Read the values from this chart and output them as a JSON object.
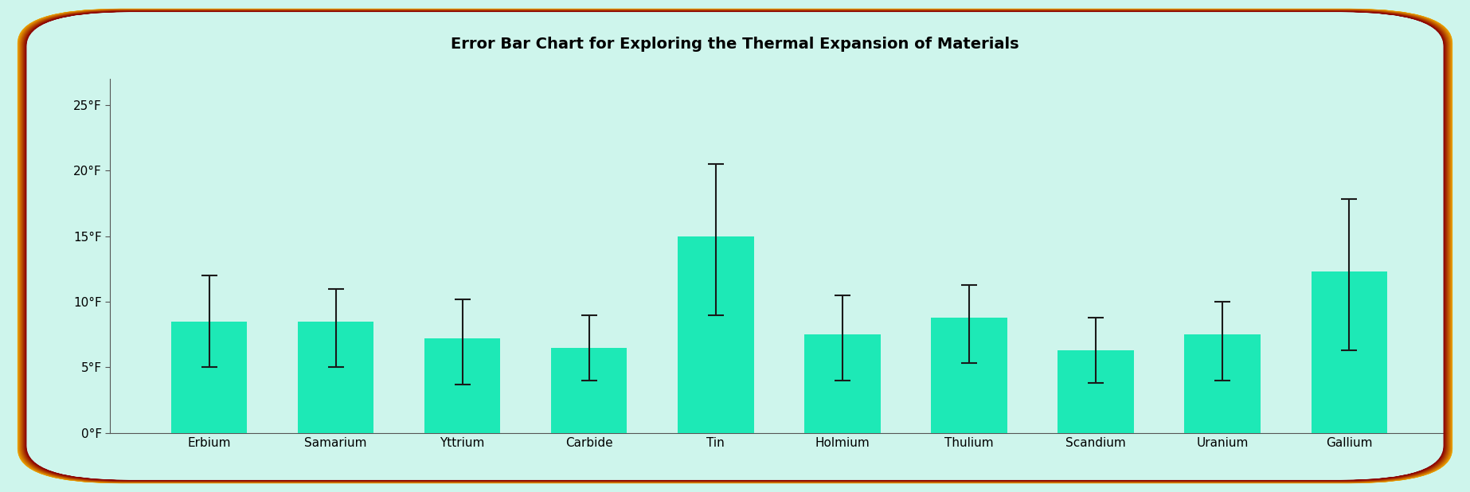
{
  "title": "Error Bar Chart for Exploring the Thermal Expansion of Materials",
  "categories": [
    "Erbium",
    "Samarium",
    "Yttrium",
    "Carbide",
    "Tin",
    "Holmium",
    "Thulium",
    "Scandium",
    "Uranium",
    "Gallium"
  ],
  "values": [
    8.5,
    8.5,
    7.2,
    6.5,
    15.0,
    7.5,
    8.8,
    6.3,
    7.5,
    12.3
  ],
  "errors_upper": [
    3.5,
    2.5,
    3.0,
    2.5,
    5.5,
    3.0,
    2.5,
    2.5,
    2.5,
    5.5
  ],
  "errors_lower": [
    3.5,
    3.5,
    3.5,
    2.5,
    6.0,
    3.5,
    3.5,
    2.5,
    3.5,
    6.0
  ],
  "bar_color": "#1de9b6",
  "error_color": "#1a1a1a",
  "background_color": "#cef5ec",
  "border_color_top": "#f0a800",
  "border_color_bottom": "#8b0000",
  "yticks": [
    0,
    5,
    10,
    15,
    20,
    25
  ],
  "ytick_labels": [
    "0°F",
    "5°F",
    "10°F",
    "15°F",
    "20°F",
    "25°F"
  ],
  "ylim": [
    0,
    27
  ],
  "title_fontsize": 14,
  "tick_fontsize": 11,
  "bar_width": 0.6,
  "fig_width": 18.46,
  "fig_height": 6.18,
  "dpi": 100
}
